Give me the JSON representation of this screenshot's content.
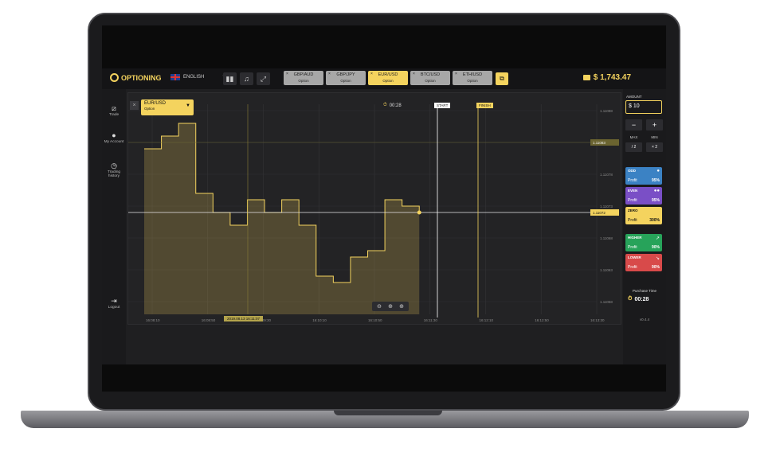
{
  "app": {
    "logo": "OPTIONING",
    "language": "ENGLISH",
    "balance": "$ 1,743.47",
    "version": "v0.4.4"
  },
  "toolbar": {
    "icons": [
      "layout-icon",
      "music-icon",
      "fullscreen-icon"
    ]
  },
  "tabs": [
    {
      "pair": "GBP/AUD",
      "type": "Option",
      "active": false
    },
    {
      "pair": "GBP/JPY",
      "type": "Option",
      "active": false
    },
    {
      "pair": "EUR/USD",
      "type": "Option",
      "active": true
    },
    {
      "pair": "BTC/USD",
      "type": "Option",
      "active": false
    },
    {
      "pair": "ETH/USD",
      "type": "Option",
      "active": false
    }
  ],
  "sidebar": {
    "items": [
      {
        "label": "Trade",
        "icon": "chart-icon"
      },
      {
        "label": "My Account",
        "icon": "user-icon"
      },
      {
        "label": "Trading history",
        "icon": "history-icon"
      },
      {
        "label": "Logout",
        "icon": "logout-icon"
      }
    ]
  },
  "chart": {
    "pair": "EUR/USD",
    "pair_type": "Option",
    "timer": "00:28",
    "start_label": "START",
    "finish_label": "FINISH",
    "current_price": "1.11072",
    "upper_price": "1.11083",
    "date_tag": "2019.08.13 16:11:07",
    "y_ticks": [
      "1.11088",
      "1.11083",
      "1.11078",
      "1.11073",
      "1.11068",
      "1.11063",
      "1.11058"
    ],
    "x_ticks": [
      "16:08:10",
      "16:08:50",
      "16:09:30",
      "16:10:10",
      "16:10:50",
      "16:11:30",
      "16:12:10",
      "16:12:50",
      "16:13:30"
    ]
  },
  "chart_data": {
    "type": "area",
    "x": [
      "16:08:10",
      "16:08:20",
      "16:08:30",
      "16:08:40",
      "16:08:50",
      "16:09:00",
      "16:09:10",
      "16:09:20",
      "16:09:30",
      "16:09:40",
      "16:09:50",
      "16:10:00",
      "16:10:10",
      "16:10:20",
      "16:10:30",
      "16:10:40",
      "16:10:50"
    ],
    "y": [
      1.11082,
      1.11084,
      1.11086,
      1.11075,
      1.11072,
      1.1107,
      1.11074,
      1.11072,
      1.11074,
      1.1107,
      1.11062,
      1.11061,
      1.11065,
      1.11066,
      1.11074,
      1.11073,
      1.11072
    ],
    "ylim": [
      1.11056,
      1.11089
    ],
    "grid": true
  },
  "panel": {
    "amount_label": "AMOUNT",
    "amount_value": "$ 10",
    "minus": "−",
    "plus": "+",
    "max_label": "MAX",
    "min_label": "MIN",
    "half": "/ 2",
    "double": "× 2",
    "bets": [
      {
        "title": "ODD",
        "profit": "Profit",
        "pct": "95%",
        "color": "#3b82c4"
      },
      {
        "title": "EVEN",
        "profit": "Profit",
        "pct": "95%",
        "color": "#7a4fc6"
      },
      {
        "title": "ZERO",
        "profit": "Profit",
        "pct": "300%",
        "color": "#f4d35e"
      },
      {
        "title": "HIGHER",
        "profit": "Profit",
        "pct": "90%",
        "color": "#27a35a"
      },
      {
        "title": "LOWER",
        "profit": "Profit",
        "pct": "90%",
        "color": "#d84a4a"
      }
    ],
    "purchase_label": "Purchase Time",
    "purchase_time": "00:28"
  }
}
